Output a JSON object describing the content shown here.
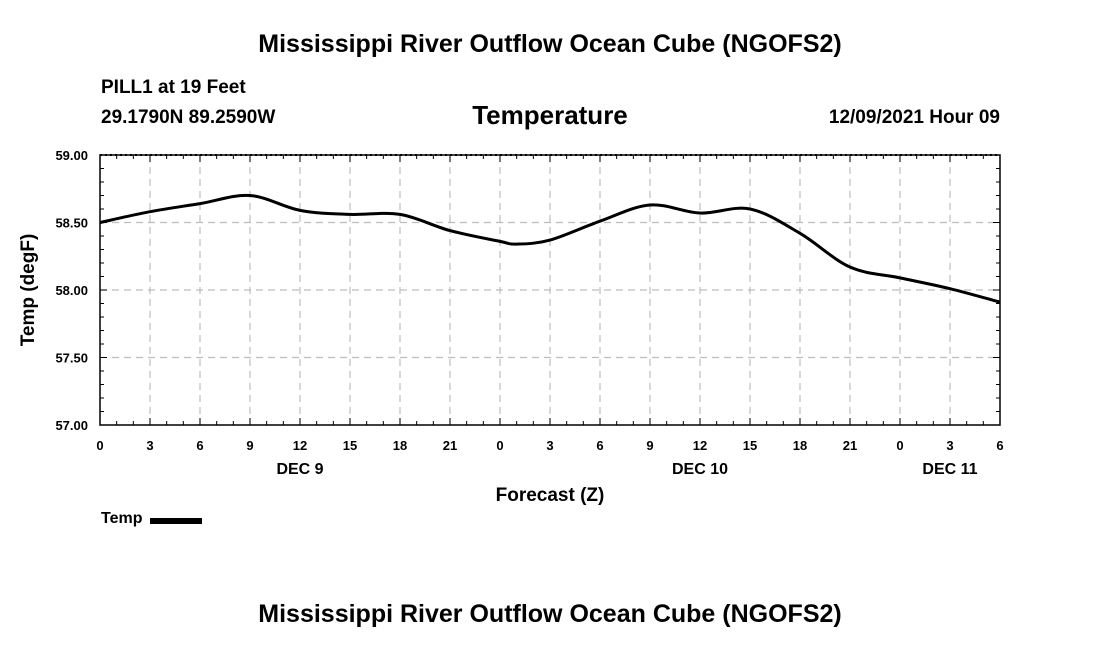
{
  "header": {
    "title": "Mississippi River Outflow Ocean Cube (NGOFS2)",
    "station": "PILL1 at 19 Feet",
    "coords": "29.1790N  89.2590W",
    "parameter": "Temperature",
    "datetime": "12/09/2021 Hour 09"
  },
  "footer": {
    "title": "Mississippi River Outflow Ocean Cube (NGOFS2)"
  },
  "legend": {
    "label": "Temp"
  },
  "chart_data": {
    "type": "line",
    "title": "Temperature",
    "xlabel": "Forecast (Z)",
    "ylabel": "Temp (degF)",
    "ylim": [
      57.0,
      59.0
    ],
    "xlim": [
      0,
      54
    ],
    "grid": true,
    "y_ticks": [
      "59.00",
      "58.50",
      "58.00",
      "57.50",
      "57.00"
    ],
    "y_tick_values": [
      59.0,
      58.5,
      58.0,
      57.5,
      57.0
    ],
    "x_tick_hours": [
      0,
      3,
      6,
      9,
      12,
      15,
      18,
      21,
      24,
      27,
      30,
      33,
      36,
      39,
      42,
      45,
      48,
      51,
      54
    ],
    "x_tick_labels": [
      "0",
      "3",
      "6",
      "9",
      "12",
      "15",
      "18",
      "21",
      "0",
      "3",
      "6",
      "9",
      "12",
      "15",
      "18",
      "21",
      "0",
      "3",
      "6"
    ],
    "day_labels": [
      {
        "hour": 12,
        "label": "DEC 9"
      },
      {
        "hour": 36,
        "label": "DEC 10"
      },
      {
        "hour": 51,
        "label": "DEC 11"
      }
    ],
    "series": [
      {
        "name": "Temp",
        "color": "#000000",
        "x": [
          0,
          3,
          6,
          9,
          12,
          15,
          18,
          21,
          24,
          25,
          27,
          30,
          33,
          36,
          39,
          42,
          45,
          48,
          51,
          54
        ],
        "values": [
          58.5,
          58.58,
          58.64,
          58.7,
          58.59,
          58.56,
          58.56,
          58.44,
          58.36,
          58.34,
          58.37,
          58.51,
          58.63,
          58.57,
          58.6,
          58.42,
          58.17,
          58.09,
          58.01,
          57.91
        ]
      }
    ]
  }
}
